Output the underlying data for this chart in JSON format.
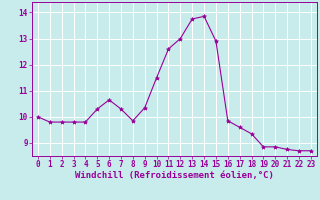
{
  "x": [
    0,
    1,
    2,
    3,
    4,
    5,
    6,
    7,
    8,
    9,
    10,
    11,
    12,
    13,
    14,
    15,
    16,
    17,
    18,
    19,
    20,
    21,
    22,
    23
  ],
  "y": [
    10.0,
    9.8,
    9.8,
    9.8,
    9.8,
    10.3,
    10.65,
    10.3,
    9.85,
    10.35,
    11.5,
    12.6,
    13.0,
    13.75,
    13.85,
    12.9,
    9.85,
    9.6,
    9.35,
    8.85,
    8.85,
    8.75,
    8.7,
    8.7
  ],
  "line_color": "#990099",
  "marker": "*",
  "marker_size": 3,
  "bg_color": "#c8ecec",
  "grid_color": "#ffffff",
  "xlabel": "Windchill (Refroidissement éolien,°C)",
  "xlabel_color": "#990099",
  "xlabel_fontsize": 6.5,
  "tick_color": "#990099",
  "tick_fontsize": 5.5,
  "yticks": [
    9,
    10,
    11,
    12,
    13,
    14
  ],
  "xticks": [
    0,
    1,
    2,
    3,
    4,
    5,
    6,
    7,
    8,
    9,
    10,
    11,
    12,
    13,
    14,
    15,
    16,
    17,
    18,
    19,
    20,
    21,
    22,
    23
  ],
  "ylim": [
    8.5,
    14.4
  ],
  "xlim": [
    -0.5,
    23.5
  ]
}
